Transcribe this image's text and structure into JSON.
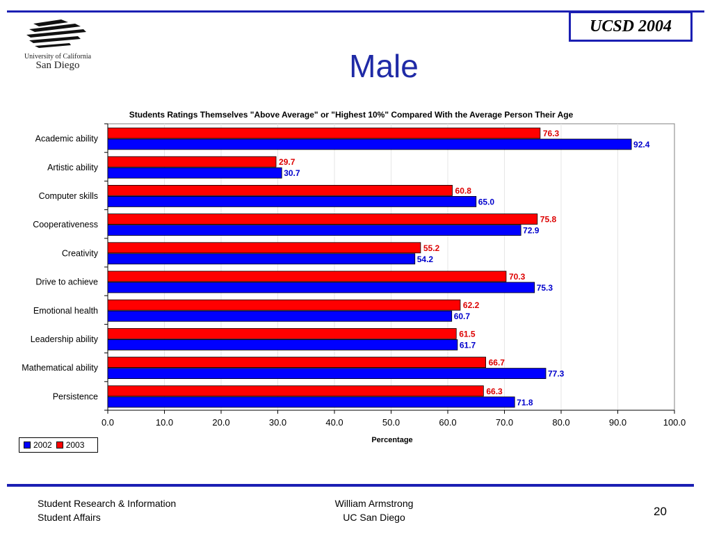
{
  "header": {
    "brand_box": "UCSD 2004",
    "logo_text_1": "University of California",
    "logo_text_2": "San Diego"
  },
  "slide": {
    "title": "Male"
  },
  "chart_data": {
    "type": "bar",
    "orientation": "horizontal",
    "title": "Students Ratings Themselves \"Above Average\" or \"Highest 10%\" Compared With the Average Person Their Age",
    "xlabel": "Percentage",
    "ylabel": "",
    "xlim": [
      0,
      100
    ],
    "x_ticks": [
      "0.0",
      "10.0",
      "20.0",
      "30.0",
      "40.0",
      "50.0",
      "60.0",
      "70.0",
      "80.0",
      "90.0",
      "100.0"
    ],
    "grid": true,
    "legend_position": "bottom-left",
    "categories": [
      "Academic ability",
      "Artistic ability",
      "Computer skills",
      "Cooperativeness",
      "Creativity",
      "Drive to achieve",
      "Emotional health",
      "Leadership ability",
      "Mathematical ability",
      "Persistence"
    ],
    "series": [
      {
        "name": "2002",
        "color": "#0000ff",
        "label_color": "#0000cc",
        "values": [
          92.4,
          30.7,
          65.0,
          72.9,
          54.2,
          75.3,
          60.7,
          61.7,
          77.3,
          71.8
        ]
      },
      {
        "name": "2003",
        "color": "#ff0000",
        "label_color": "#dd0000",
        "values": [
          76.3,
          29.7,
          60.8,
          75.8,
          55.2,
          70.3,
          62.2,
          61.5,
          66.7,
          66.3
        ]
      }
    ]
  },
  "footer": {
    "left_line1": "Student Research & Information",
    "left_line2": "Student Affairs",
    "mid_line1": "William Armstrong",
    "mid_line2": "UC San Diego",
    "page_number": "20"
  }
}
